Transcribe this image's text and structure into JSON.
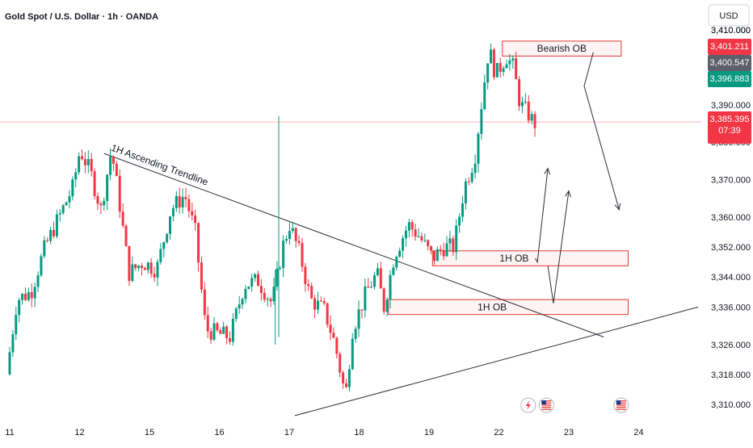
{
  "header": {
    "title": "Gold Spot / U.S. Dollar · 1h · OANDA",
    "currency_button": "USD"
  },
  "price_badges": {
    "top_partial": "3,410.000",
    "red_upper": "3,401.211",
    "gray": "3,400.547",
    "green": "3,396.883",
    "current_price": "3,385.395",
    "countdown": "07:39"
  },
  "colors": {
    "bull": "#089981",
    "bear": "#f23645",
    "zone_border": "#e53935",
    "zone_fill": "#fdecec",
    "gray_badge": "#5d606b",
    "line": "#2a2e39"
  },
  "chart_data": {
    "type": "candlestick",
    "title": "Gold Spot / U.S. Dollar · 1h · OANDA",
    "y_axis": {
      "ticks": [
        3310,
        3318,
        3326,
        3336,
        3344,
        3352,
        3360,
        3370,
        3380,
        3390,
        3410
      ],
      "tick_labels": [
        "3,310.000",
        "3,318.000",
        "3,326.000",
        "3,336.000",
        "3,344.000",
        "3,352.000",
        "3,360.000",
        "3,370.000",
        "3,380.000",
        "3,390.000",
        "3,410.000"
      ],
      "range": [
        3306,
        3413
      ]
    },
    "x_axis": {
      "labels": [
        "11",
        "12",
        "15",
        "16",
        "17",
        "18",
        "19",
        "22",
        "23",
        "24"
      ],
      "range": [
        0,
        9.6
      ]
    },
    "current_price": 3385.395,
    "session_path": [
      [
        0.0,
        3318
      ],
      [
        0.15,
        3338
      ],
      [
        0.35,
        3340
      ],
      [
        0.55,
        3352
      ],
      [
        0.8,
        3362
      ],
      [
        0.95,
        3368
      ],
      [
        1.05,
        3378
      ],
      [
        1.2,
        3372
      ],
      [
        1.35,
        3362
      ],
      [
        1.5,
        3378
      ],
      [
        1.6,
        3366
      ],
      [
        1.75,
        3345
      ],
      [
        1.95,
        3348
      ],
      [
        2.15,
        3346
      ],
      [
        2.35,
        3362
      ],
      [
        2.55,
        3366
      ],
      [
        2.7,
        3356
      ],
      [
        2.85,
        3330
      ],
      [
        3.0,
        3329
      ],
      [
        3.2,
        3328
      ],
      [
        3.4,
        3342
      ],
      [
        3.6,
        3343
      ],
      [
        3.8,
        3337
      ],
      [
        3.95,
        3352
      ],
      [
        4.05,
        3358
      ],
      [
        4.2,
        3350
      ],
      [
        4.35,
        3338
      ],
      [
        4.55,
        3335
      ],
      [
        4.7,
        3326
      ],
      [
        4.85,
        3312
      ],
      [
        4.95,
        3330
      ],
      [
        5.15,
        3340
      ],
      [
        5.3,
        3345
      ],
      [
        5.4,
        3336
      ],
      [
        5.55,
        3350
      ],
      [
        5.75,
        3358
      ],
      [
        5.9,
        3355
      ],
      [
        6.1,
        3349
      ],
      [
        6.25,
        3352
      ],
      [
        6.4,
        3352
      ],
      [
        6.55,
        3368
      ],
      [
        6.7,
        3376
      ],
      [
        6.78,
        3388
      ],
      [
        6.9,
        3405
      ],
      [
        7.0,
        3398
      ],
      [
        7.15,
        3403
      ],
      [
        7.25,
        3400
      ],
      [
        7.35,
        3390
      ],
      [
        7.45,
        3388
      ],
      [
        7.55,
        3385
      ]
    ],
    "spikes": [
      {
        "x": 3.85,
        "high": 3387,
        "low": 3328
      },
      {
        "x": 3.8,
        "high": 3346,
        "low": 3326
      }
    ],
    "zones": [
      {
        "label": "Bearish OB",
        "x0": 7.05,
        "x1": 8.75,
        "y0": 3403,
        "y1": 3407
      },
      {
        "label": "1H OB",
        "x0": 6.05,
        "x1": 8.85,
        "y0": 3347,
        "y1": 3351
      },
      {
        "label": "1H OB",
        "x0": 5.42,
        "x1": 8.85,
        "y0": 3334,
        "y1": 3338
      }
    ],
    "trendlines": [
      {
        "label": "1H Ascending Trendline",
        "from": [
          1.35,
          3377
        ],
        "to": [
          8.5,
          3328
        ]
      },
      {
        "label": "",
        "from": [
          4.08,
          3307
        ],
        "to": [
          9.85,
          3336
        ]
      }
    ],
    "projections": [
      {
        "points": [
          [
            8.35,
            3404
          ],
          [
            8.22,
            3395
          ],
          [
            8.72,
            3362
          ]
        ]
      },
      {
        "points": [
          [
            7.52,
            3349
          ],
          [
            7.55,
            3348
          ],
          [
            7.7,
            3373
          ]
        ]
      },
      {
        "points": [
          [
            7.7,
            3347
          ],
          [
            7.78,
            3337
          ],
          [
            8.0,
            3367
          ]
        ]
      }
    ],
    "event_markers": [
      {
        "x": 7.42,
        "icon": "lightning-icon"
      },
      {
        "x": 7.68,
        "icon": "us-flag-icon"
      },
      {
        "x": 8.75,
        "icon": "us-flag-icon"
      }
    ]
  }
}
